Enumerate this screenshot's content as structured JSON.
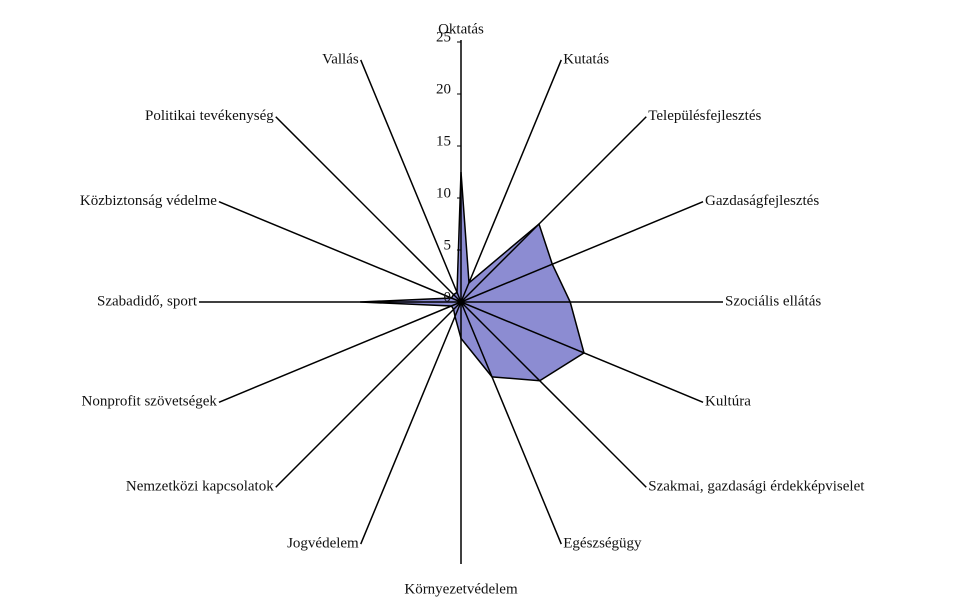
{
  "chart_data": {
    "type": "radar",
    "categories": [
      "Oktatás",
      "Kutatás",
      "Településfejlesztés",
      "Gazdaságfejlesztés",
      "Szociális ellátás",
      "Kultúra",
      "Szakmai, gazdasági érdekképviselet",
      "Egészségügy",
      "Környezetvédelem",
      "Jogvédelem",
      "Nemzetközi kapcsolatok",
      "Nonprofit szövetségek",
      "Szabadidő, sport",
      "Közbiztonság védelme",
      "Politikai tevékenység",
      "Vallás"
    ],
    "values": [
      12.5,
      2,
      10.6,
      9.5,
      10.5,
      12.8,
      10.7,
      7.8,
      3.5,
      1.5,
      1,
      1,
      9.7,
      1,
      1,
      1
    ],
    "color": "#8c8cd2",
    "rlim": [
      0,
      25
    ],
    "rticks": [
      0,
      5,
      10,
      15,
      20,
      25
    ]
  }
}
